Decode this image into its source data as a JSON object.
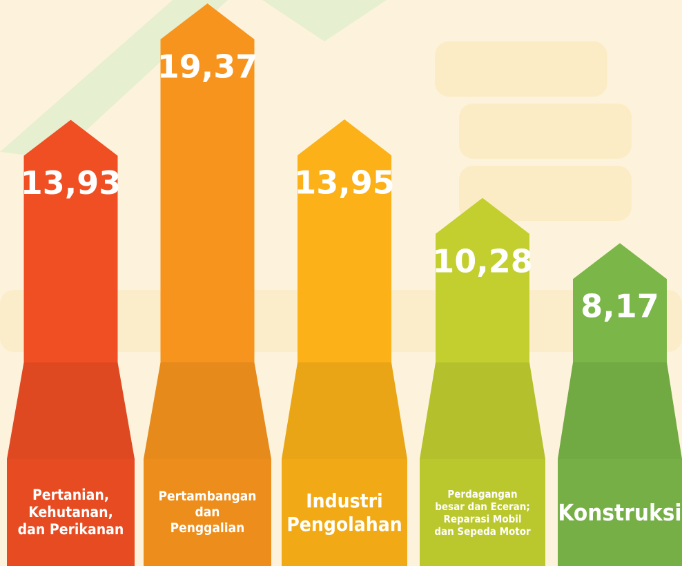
{
  "chart_data": {
    "type": "bar",
    "categories": [
      "Pertanian,\nKehutanan,\ndan Perikanan",
      "Pertambangan\ndan\nPenggalian",
      "Industri\nPengolahan",
      "Perdagangan\nbesar dan Eceran;\nReparasi Mobil\ndan Sepeda Motor",
      "Konstruksi"
    ],
    "values": [
      13.93,
      19.37,
      13.95,
      10.28,
      8.17
    ],
    "value_labels": [
      "13,93",
      "19,37",
      "13,95",
      "10,28",
      "8,17"
    ],
    "colors": [
      "#f04e23",
      "#f7941d",
      "#fbb117",
      "#c2cf2f",
      "#7ab648"
    ]
  }
}
